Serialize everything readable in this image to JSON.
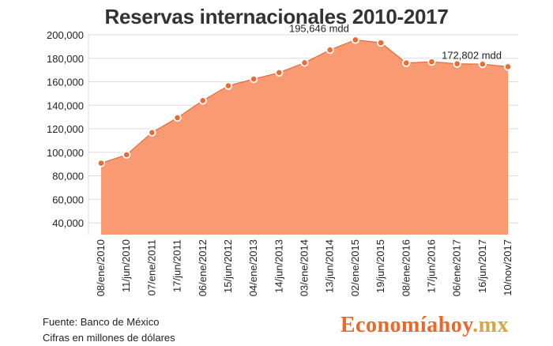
{
  "chart_data": {
    "type": "area",
    "title": "Reservas internacionales 2010-2017",
    "xlabel": "",
    "ylabel": "",
    "ylim": [
      30000,
      200000
    ],
    "yticks": [
      "200,000",
      "180,000",
      "160,000",
      "140,000",
      "120,000",
      "100,000",
      "80,000",
      "60,000",
      "40,000"
    ],
    "ytick_values": [
      200000,
      180000,
      160000,
      140000,
      120000,
      100000,
      80000,
      60000,
      40000
    ],
    "categories": [
      "08/ene/2010",
      "11/jun/2010",
      "07/ene/2011",
      "17/jun/2011",
      "06/ene/2012",
      "15/jun/2012",
      "04/ene/2013",
      "14/jun/2013",
      "03/ene/2014",
      "13/jun/2014",
      "02/ene/2015",
      "19/jun/2015",
      "08/ene/2016",
      "17/jun/2016",
      "06/ene/2017",
      "16/jun/2017",
      "10/nov/2017"
    ],
    "series": [
      {
        "name": "Reservas internacionales",
        "values": [
          90800,
          97900,
          116800,
          129400,
          144000,
          156600,
          162300,
          167800,
          176200,
          187100,
          195646,
          193200,
          176000,
          177000,
          175300,
          175000,
          172802
        ]
      }
    ],
    "annotations": [
      {
        "index": 10,
        "text": "195,646 mdd"
      },
      {
        "index": 16,
        "text": "172,802 mdd"
      }
    ],
    "colors": {
      "area": "#fa9a73",
      "line": "#e86a3c",
      "marker": "#ec6b35",
      "grid": "#dcdcdc"
    }
  },
  "footer": {
    "source": "Fuente: Banco de México",
    "units": "Cifras en millones de dólares"
  },
  "brand": {
    "part1": "Economía",
    "part2": "hoy",
    "part3": ".mx"
  }
}
